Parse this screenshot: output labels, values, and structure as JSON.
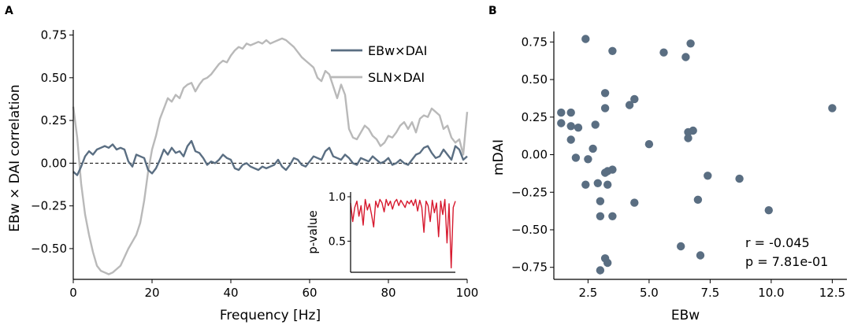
{
  "chart_data": [
    {
      "type": "line",
      "panel": "A",
      "xlabel": "Frequency [Hz]",
      "ylabel": "EBw × DAI correlation",
      "xlim": [
        0,
        100
      ],
      "ylim": [
        -0.68,
        0.78
      ],
      "xticks": [
        "0",
        "20",
        "40",
        "60",
        "80",
        "100"
      ],
      "yticks": [
        "−0.50",
        "−0.25",
        "0.00",
        "0.25",
        "0.50",
        "0.75"
      ],
      "reference_line": {
        "y": 0,
        "style": "dashed"
      },
      "legend_position": "top-right",
      "colors": {
        "ebw": "#5a6e82",
        "sln": "#b9b9b9",
        "pvalue": "#d7192e"
      },
      "series": [
        {
          "name": "EBw×DAI",
          "x": [
            0,
            1,
            2,
            3,
            4,
            5,
            6,
            7,
            8,
            9,
            10,
            11,
            12,
            13,
            14,
            15,
            16,
            17,
            18,
            19,
            20,
            21,
            22,
            23,
            24,
            25,
            26,
            27,
            28,
            29,
            30,
            31,
            32,
            33,
            34,
            35,
            36,
            37,
            38,
            39,
            40,
            41,
            42,
            43,
            44,
            45,
            46,
            47,
            48,
            49,
            50,
            51,
            52,
            53,
            54,
            55,
            56,
            57,
            58,
            59,
            60,
            61,
            62,
            63,
            64,
            65,
            66,
            67,
            68,
            69,
            70,
            71,
            72,
            73,
            74,
            75,
            76,
            77,
            78,
            79,
            80,
            81,
            82,
            83,
            84,
            85,
            86,
            87,
            88,
            89,
            90,
            91,
            92,
            93,
            94,
            95,
            96,
            97,
            98,
            99,
            100
          ],
          "values": [
            -0.05,
            -0.07,
            -0.02,
            0.04,
            0.07,
            0.05,
            0.08,
            0.09,
            0.1,
            0.09,
            0.11,
            0.08,
            0.09,
            0.08,
            0.01,
            -0.02,
            0.05,
            0.04,
            0.03,
            -0.04,
            -0.06,
            -0.03,
            0.02,
            0.08,
            0.05,
            0.09,
            0.06,
            0.07,
            0.04,
            0.1,
            0.13,
            0.07,
            0.06,
            0.03,
            -0.01,
            0.01,
            0.0,
            0.02,
            0.05,
            0.03,
            0.02,
            -0.03,
            -0.04,
            -0.01,
            0.0,
            -0.02,
            -0.03,
            -0.04,
            -0.02,
            -0.03,
            -0.02,
            -0.01,
            0.02,
            -0.02,
            -0.04,
            -0.01,
            0.03,
            0.02,
            -0.01,
            -0.02,
            0.01,
            0.04,
            0.03,
            0.02,
            0.07,
            0.09,
            0.04,
            0.03,
            0.02,
            0.05,
            0.03,
            0.0,
            -0.01,
            0.03,
            0.02,
            0.01,
            0.04,
            0.02,
            0.0,
            0.01,
            0.03,
            -0.01,
            0.0,
            0.02,
            0.0,
            -0.01,
            0.02,
            0.05,
            0.06,
            0.09,
            0.1,
            0.06,
            0.03,
            0.04,
            0.08,
            0.05,
            0.02,
            0.1,
            0.08,
            0.02,
            0.04
          ]
        },
        {
          "name": "SLN×DAI",
          "x": [
            0,
            1,
            2,
            3,
            4,
            5,
            6,
            7,
            8,
            9,
            10,
            11,
            12,
            13,
            14,
            15,
            16,
            17,
            18,
            19,
            20,
            21,
            22,
            23,
            24,
            25,
            26,
            27,
            28,
            29,
            30,
            31,
            32,
            33,
            34,
            35,
            36,
            37,
            38,
            39,
            40,
            41,
            42,
            43,
            44,
            45,
            46,
            47,
            48,
            49,
            50,
            51,
            52,
            53,
            54,
            55,
            56,
            57,
            58,
            59,
            60,
            61,
            62,
            63,
            64,
            65,
            66,
            67,
            68,
            69,
            70,
            71,
            72,
            73,
            74,
            75,
            76,
            77,
            78,
            79,
            80,
            81,
            82,
            83,
            84,
            85,
            86,
            87,
            88,
            89,
            90,
            91,
            92,
            93,
            94,
            95,
            96,
            97,
            98,
            99,
            100
          ],
          "values": [
            0.33,
            0.15,
            -0.12,
            -0.3,
            -0.42,
            -0.52,
            -0.6,
            -0.63,
            -0.64,
            -0.65,
            -0.64,
            -0.62,
            -0.6,
            -0.55,
            -0.5,
            -0.46,
            -0.42,
            -0.35,
            -0.22,
            -0.05,
            0.08,
            0.16,
            0.26,
            0.32,
            0.38,
            0.36,
            0.4,
            0.38,
            0.44,
            0.46,
            0.47,
            0.42,
            0.46,
            0.49,
            0.5,
            0.52,
            0.55,
            0.58,
            0.6,
            0.59,
            0.63,
            0.66,
            0.68,
            0.67,
            0.7,
            0.69,
            0.7,
            0.71,
            0.7,
            0.72,
            0.7,
            0.71,
            0.72,
            0.73,
            0.72,
            0.7,
            0.68,
            0.65,
            0.62,
            0.6,
            0.58,
            0.56,
            0.5,
            0.48,
            0.54,
            0.52,
            0.45,
            0.38,
            0.46,
            0.4,
            0.2,
            0.15,
            0.14,
            0.18,
            0.22,
            0.2,
            0.16,
            0.14,
            0.1,
            0.12,
            0.16,
            0.15,
            0.18,
            0.22,
            0.24,
            0.2,
            0.24,
            0.18,
            0.26,
            0.28,
            0.27,
            0.32,
            0.3,
            0.28,
            0.2,
            0.22,
            0.15,
            0.12,
            0.14,
            0.05,
            0.3
          ]
        }
      ],
      "inset": {
        "ylabel": "p-value",
        "yticks": [
          "0.5",
          "1.0"
        ],
        "ylim": [
          0.15,
          1.0
        ],
        "xlim": [
          0,
          100
        ],
        "series": [
          {
            "name": "p-value",
            "x": [
              0,
              2,
              4,
              6,
              8,
              10,
              12,
              14,
              16,
              18,
              20,
              22,
              24,
              26,
              28,
              30,
              32,
              34,
              36,
              38,
              40,
              42,
              44,
              46,
              48,
              50,
              52,
              54,
              56,
              58,
              60,
              62,
              64,
              66,
              68,
              70,
              72,
              74,
              76,
              78,
              80,
              82,
              84,
              86,
              88,
              90,
              92,
              94,
              96,
              98,
              100
            ],
            "values": [
              0.93,
              0.72,
              0.88,
              0.95,
              0.78,
              0.9,
              0.68,
              0.97,
              0.85,
              0.92,
              0.8,
              0.66,
              0.95,
              0.88,
              0.97,
              0.93,
              0.83,
              0.97,
              0.9,
              0.95,
              0.86,
              0.94,
              0.97,
              0.9,
              0.96,
              0.92,
              0.88,
              0.95,
              0.92,
              0.96,
              0.9,
              0.97,
              0.84,
              0.96,
              0.88,
              0.6,
              0.95,
              0.9,
              0.72,
              0.96,
              0.82,
              0.93,
              0.55,
              0.95,
              0.8,
              0.97,
              0.48,
              0.92,
              0.2,
              0.88,
              0.95
            ]
          }
        ]
      }
    },
    {
      "type": "scatter",
      "panel": "B",
      "xlabel": "EBw",
      "ylabel": "mDAI",
      "xlim": [
        1.1,
        13.1
      ],
      "ylim": [
        -0.83,
        0.82
      ],
      "xticks": [
        "2.5",
        "5.0",
        "7.5",
        "10.0",
        "12.5"
      ],
      "yticks": [
        "−0.75",
        "−0.50",
        "−0.25",
        "0.00",
        "0.25",
        "0.50",
        "0.75"
      ],
      "marker_color": "#5a6e82",
      "x": [
        2.4,
        3.5,
        5.6,
        6.5,
        6.7,
        3.2,
        4.4,
        4.2,
        3.2,
        12.5,
        1.4,
        1.8,
        1.4,
        1.8,
        2.1,
        2.8,
        6.6,
        6.8,
        6.6,
        1.8,
        5.0,
        2.7,
        2.0,
        2.5,
        3.5,
        3.3,
        3.2,
        2.9,
        7.4,
        8.7,
        2.4,
        3.3,
        3.0,
        7.0,
        4.4,
        3.0,
        3.5,
        9.9,
        6.3,
        7.1,
        3.2,
        3.3,
        3.0
      ],
      "y": [
        0.77,
        0.69,
        0.68,
        0.65,
        0.74,
        0.41,
        0.37,
        0.33,
        0.31,
        0.31,
        0.28,
        0.28,
        0.21,
        0.19,
        0.18,
        0.2,
        0.15,
        0.16,
        0.11,
        0.1,
        0.07,
        0.04,
        -0.02,
        -0.03,
        -0.1,
        -0.11,
        -0.12,
        -0.19,
        -0.14,
        -0.16,
        -0.2,
        -0.2,
        -0.31,
        -0.3,
        -0.32,
        -0.41,
        -0.41,
        -0.37,
        -0.61,
        -0.67,
        -0.69,
        -0.72,
        -0.77
      ],
      "annotation": {
        "r_text": "r = -0.045",
        "p_text": "p = 7.81e-01"
      }
    }
  ]
}
